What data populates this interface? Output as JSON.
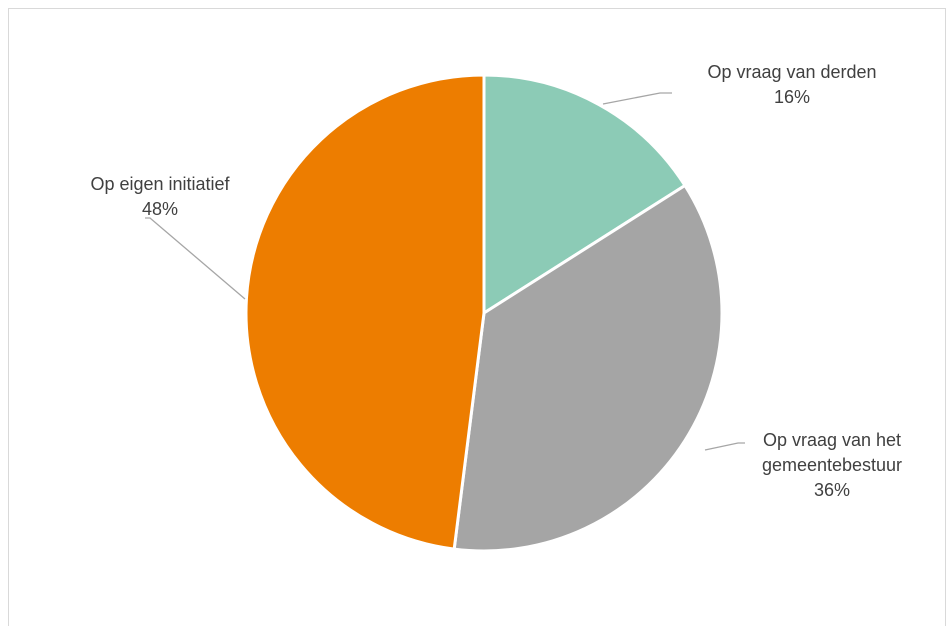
{
  "chart_data": {
    "type": "pie",
    "slices": [
      {
        "label": "Op vraag van derden",
        "label_lines": [
          "Op vraag van derden"
        ],
        "value": 16,
        "display": "16%",
        "color": "#8ccbb6"
      },
      {
        "label": "Op vraag van het gemeentebestuur",
        "label_lines": [
          "Op vraag van het",
          "gemeentebestuur"
        ],
        "value": 36,
        "display": "36%",
        "color": "#a5a5a5"
      },
      {
        "label": "Op eigen initiatief",
        "label_lines": [
          "Op eigen initiatief"
        ],
        "value": 48,
        "display": "48%",
        "color": "#ed7d00"
      }
    ],
    "start_angle": "12 o'clock",
    "direction": "clockwise",
    "legend": "none",
    "data_labels": "outside with leader lines"
  }
}
